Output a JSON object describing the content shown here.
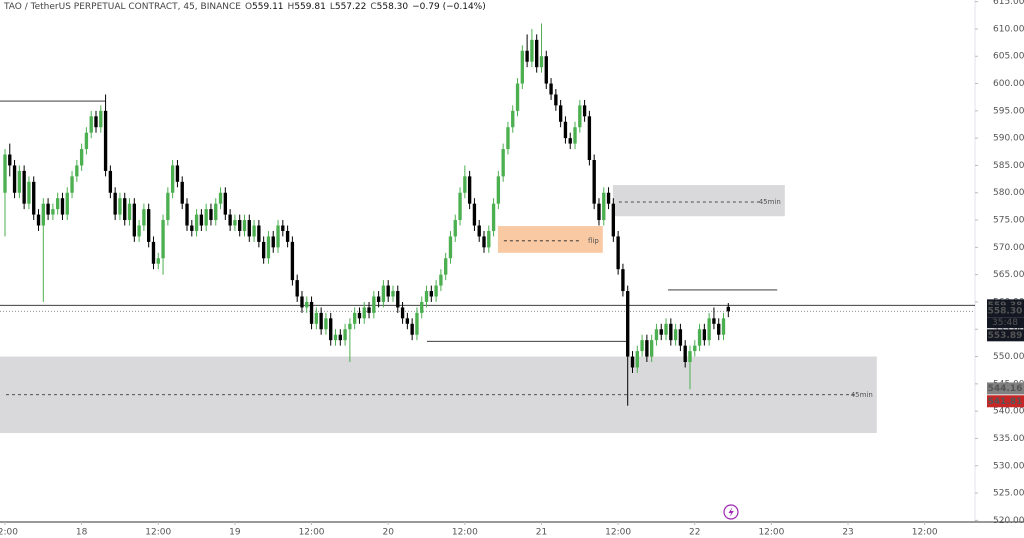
{
  "chart_data": {
    "type": "candlestick",
    "symbol": "TAO / TetherUS PERPETUAL CONTRACT, 45, BINANCE",
    "legend": [
      {
        "key": "O",
        "value": 559.11,
        "label": "559.11"
      },
      {
        "key": "H",
        "value": 559.81,
        "label": "559.81"
      },
      {
        "key": "L",
        "value": 557.22,
        "label": "557.22"
      },
      {
        "key": "C",
        "value": 558.3,
        "label": "558.30"
      }
    ],
    "change": "−0.79 (−0.14%)",
    "up_color": "#4caf50",
    "down_color": "#000000",
    "xlim": [
      -1.04,
      202.5
    ],
    "xticks": [
      {
        "value": 0,
        "label": "12:00"
      },
      {
        "value": 16,
        "label": "18"
      },
      {
        "value": 32,
        "label": "12:00"
      },
      {
        "value": 48,
        "label": "19"
      },
      {
        "value": 64,
        "label": "12:00"
      },
      {
        "value": 80,
        "label": "20"
      },
      {
        "value": 96,
        "label": "12:00"
      },
      {
        "value": 112,
        "label": "21"
      },
      {
        "value": 128,
        "label": "12:00"
      },
      {
        "value": 144,
        "label": "22"
      },
      {
        "value": 160,
        "label": "12:00"
      },
      {
        "value": 176,
        "label": "23"
      },
      {
        "value": 192,
        "label": "12:00"
      }
    ],
    "ylim": [
      519.7,
      615.3
    ],
    "yticks": [
      {
        "value": 520,
        "label": "520.00"
      },
      {
        "value": 525,
        "label": "525.00"
      },
      {
        "value": 530,
        "label": "530.00"
      },
      {
        "value": 535,
        "label": "535.00"
      },
      {
        "value": 540,
        "label": "540.00"
      },
      {
        "value": 545,
        "label": "545.00"
      },
      {
        "value": 550,
        "label": "550.00"
      },
      {
        "value": 555,
        "label": "555.00"
      },
      {
        "value": 560,
        "label": "560.00"
      },
      {
        "value": 565,
        "label": "565.00"
      },
      {
        "value": 570,
        "label": "570.00"
      },
      {
        "value": 575,
        "label": "575.00"
      },
      {
        "value": 580,
        "label": "580.00"
      },
      {
        "value": 585,
        "label": "585.00"
      },
      {
        "value": 590,
        "label": "590.00"
      },
      {
        "value": 595,
        "label": "595.00"
      },
      {
        "value": 600,
        "label": "600.00"
      },
      {
        "value": 605,
        "label": "605.00"
      },
      {
        "value": 610,
        "label": "610.00"
      },
      {
        "value": 615,
        "label": "615.00"
      }
    ],
    "candles": [
      [
        580,
        588,
        572,
        587
      ],
      [
        587,
        589,
        583,
        585
      ],
      [
        585,
        586,
        579,
        580
      ],
      [
        580,
        585,
        579,
        584
      ],
      [
        584,
        585,
        577,
        578
      ],
      [
        578,
        583,
        577,
        582
      ],
      [
        582,
        583,
        575,
        576
      ],
      [
        576,
        577,
        573,
        574
      ],
      [
        574,
        579,
        560,
        578
      ],
      [
        578,
        579,
        575,
        576
      ],
      [
        576,
        578,
        575,
        577
      ],
      [
        577,
        580,
        576,
        579
      ],
      [
        579,
        580,
        575,
        576
      ],
      [
        576,
        581,
        575,
        580
      ],
      [
        580,
        584,
        579,
        583
      ],
      [
        583,
        586,
        582,
        585
      ],
      [
        585,
        589,
        584,
        588
      ],
      [
        588,
        592,
        587,
        591
      ],
      [
        591,
        595,
        590,
        594
      ],
      [
        594,
        595,
        591,
        592
      ],
      [
        592,
        596,
        591,
        595
      ],
      [
        595,
        598,
        583,
        584
      ],
      [
        584,
        585,
        579,
        580
      ],
      [
        580,
        581,
        575,
        576
      ],
      [
        576,
        580,
        575,
        579
      ],
      [
        579,
        580,
        574,
        575
      ],
      [
        575,
        579,
        574,
        578
      ],
      [
        578,
        579,
        571,
        572
      ],
      [
        572,
        575,
        571,
        574
      ],
      [
        574,
        578,
        573,
        577
      ],
      [
        577,
        578,
        570,
        571
      ],
      [
        571,
        572,
        566,
        567
      ],
      [
        567,
        569,
        566,
        568
      ],
      [
        568,
        576,
        565,
        575
      ],
      [
        575,
        581,
        574,
        580
      ],
      [
        580,
        586,
        579,
        585
      ],
      [
        585,
        586,
        581,
        582
      ],
      [
        582,
        583,
        577,
        578
      ],
      [
        578,
        579,
        573,
        574
      ],
      [
        574,
        575,
        572,
        573
      ],
      [
        573,
        577,
        572,
        576
      ],
      [
        576,
        577,
        573,
        574
      ],
      [
        574,
        578,
        573,
        577
      ],
      [
        577,
        578,
        574,
        575
      ],
      [
        575,
        579,
        574,
        578
      ],
      [
        578,
        581,
        577,
        580
      ],
      [
        580,
        581,
        575,
        576
      ],
      [
        576,
        577,
        573,
        574
      ],
      [
        574,
        576,
        573,
        575
      ],
      [
        575,
        576,
        572,
        573
      ],
      [
        573,
        576,
        572,
        575
      ],
      [
        575,
        576,
        571,
        572
      ],
      [
        572,
        575,
        571,
        574
      ],
      [
        574,
        575,
        570,
        571
      ],
      [
        571,
        572,
        567,
        568
      ],
      [
        568,
        573,
        567,
        572
      ],
      [
        572,
        573,
        569,
        570
      ],
      [
        570,
        575,
        569,
        574
      ],
      [
        574,
        575,
        572,
        573
      ],
      [
        573,
        574,
        570,
        571
      ],
      [
        571,
        572,
        563,
        564
      ],
      [
        564,
        565,
        560,
        561
      ],
      [
        561,
        562,
        558,
        559
      ],
      [
        559,
        561,
        558,
        560
      ],
      [
        560,
        561,
        555,
        556
      ],
      [
        556,
        559,
        555,
        558
      ],
      [
        558,
        559,
        554,
        555
      ],
      [
        555,
        558,
        554,
        557
      ],
      [
        557,
        558,
        552,
        553
      ],
      [
        553,
        555,
        552,
        554
      ],
      [
        554,
        555,
        552,
        553
      ],
      [
        553,
        556,
        552,
        555
      ],
      [
        555,
        557,
        549,
        556
      ],
      [
        556,
        559,
        555,
        558
      ],
      [
        558,
        559,
        556,
        557
      ],
      [
        557,
        560,
        556,
        559
      ],
      [
        559,
        560,
        557,
        558
      ],
      [
        558,
        562,
        557,
        561
      ],
      [
        561,
        562,
        559,
        560
      ],
      [
        560,
        564,
        559,
        563
      ],
      [
        563,
        564,
        560,
        561
      ],
      [
        561,
        563,
        560,
        562
      ],
      [
        562,
        563,
        558,
        559
      ],
      [
        559,
        560,
        556,
        557
      ],
      [
        557,
        558,
        555,
        556
      ],
      [
        556,
        557,
        553,
        554
      ],
      [
        554,
        559,
        553,
        558
      ],
      [
        558,
        561,
        557,
        560
      ],
      [
        560,
        563,
        559,
        562
      ],
      [
        562,
        563,
        560,
        561
      ],
      [
        561,
        564,
        560,
        563
      ],
      [
        563,
        566,
        562,
        565
      ],
      [
        565,
        569,
        564,
        568
      ],
      [
        568,
        573,
        567,
        572
      ],
      [
        572,
        576,
        571,
        575
      ],
      [
        575,
        581,
        574,
        580
      ],
      [
        580,
        585,
        579,
        583
      ],
      [
        583,
        584,
        577,
        578
      ],
      [
        578,
        579,
        573,
        574
      ],
      [
        574,
        575,
        571,
        572
      ],
      [
        572,
        573,
        569,
        570
      ],
      [
        570,
        574,
        569,
        573
      ],
      [
        573,
        579,
        572,
        578
      ],
      [
        578,
        584,
        577,
        583
      ],
      [
        583,
        589,
        582,
        588
      ],
      [
        588,
        593,
        587,
        592
      ],
      [
        592,
        596,
        591,
        595
      ],
      [
        595,
        601,
        594,
        600
      ],
      [
        600,
        607,
        599,
        606
      ],
      [
        606,
        609,
        603,
        604
      ],
      [
        604,
        610,
        603,
        608
      ],
      [
        608,
        609,
        602,
        603
      ],
      [
        603,
        611,
        602,
        605
      ],
      [
        605,
        606,
        599,
        600
      ],
      [
        600,
        601,
        597,
        598
      ],
      [
        598,
        599,
        595,
        596
      ],
      [
        596,
        597,
        592,
        593
      ],
      [
        593,
        594,
        589,
        590
      ],
      [
        590,
        591,
        588,
        589
      ],
      [
        589,
        593,
        588,
        592
      ],
      [
        592,
        597,
        591,
        596
      ],
      [
        596,
        597,
        593,
        594
      ],
      [
        594,
        595,
        585,
        586
      ],
      [
        586,
        587,
        577,
        578
      ],
      [
        578,
        579,
        574,
        575
      ],
      [
        575,
        581,
        574,
        580
      ],
      [
        580,
        581,
        577,
        578
      ],
      [
        578,
        579,
        571,
        572
      ],
      [
        572,
        573,
        565,
        566
      ],
      [
        566,
        567,
        561,
        562
      ],
      [
        562,
        563,
        541,
        550
      ],
      [
        550,
        551,
        547,
        548
      ],
      [
        548,
        552,
        547,
        551
      ],
      [
        551,
        554,
        550,
        553
      ],
      [
        553,
        554,
        549,
        550
      ],
      [
        550,
        554,
        549,
        553
      ],
      [
        553,
        556,
        552,
        555
      ],
      [
        555,
        556,
        553,
        554
      ],
      [
        554,
        557,
        553,
        556
      ],
      [
        556,
        557,
        552,
        553
      ],
      [
        553,
        556,
        552,
        555
      ],
      [
        555,
        556,
        551,
        552
      ],
      [
        552,
        553,
        548,
        549
      ],
      [
        549,
        552,
        544,
        551
      ],
      [
        551,
        553,
        550,
        552
      ],
      [
        552,
        556,
        551,
        555
      ],
      [
        555,
        556,
        552,
        553
      ],
      [
        553,
        558,
        552,
        557
      ],
      [
        557,
        559,
        555,
        556
      ],
      [
        556,
        557,
        553,
        554
      ],
      [
        554,
        558,
        553,
        557
      ],
      [
        559.11,
        559.81,
        557.22,
        558.3
      ]
    ],
    "zones": [
      {
        "top": 581.4,
        "bottom": 575.7,
        "mid": 578.3,
        "from": 126.9,
        "to": 162.8,
        "color": "#d9d9db",
        "label": "45min"
      },
      {
        "top": 573.9,
        "bottom": 569.0,
        "mid": 571.2,
        "from": 102.9,
        "to": 124.8,
        "color": "#f9c9a3",
        "label": "flip"
      },
      {
        "top": 550.0,
        "bottom": 536.0,
        "mid": 543.0,
        "from": -1.04,
        "to": 182.0,
        "color": "#d9d9db",
        "label": "45min"
      }
    ],
    "lines": [
      {
        "price": 596.8,
        "from": -1.04,
        "to": 20.9
      },
      {
        "price": 552.8,
        "from": 88.1,
        "to": 129.9
      },
      {
        "price": 562.2,
        "from": 138.4,
        "to": 161.2
      }
    ],
    "last_line": 559.38,
    "close_line": 558.3,
    "price_labels": [
      {
        "value": 559.38,
        "label": "559.38",
        "color": "#131722"
      },
      {
        "value": 558.3,
        "label": "558.30",
        "color": "#131722"
      },
      {
        "value": 553.89,
        "label": "553.89",
        "color": "#131722"
      },
      {
        "value": 544.16,
        "label": "544.16",
        "color": "#808080"
      },
      {
        "value": 541.81,
        "label": "541.81",
        "color": "#c62828"
      }
    ],
    "countdown": "35:48"
  }
}
